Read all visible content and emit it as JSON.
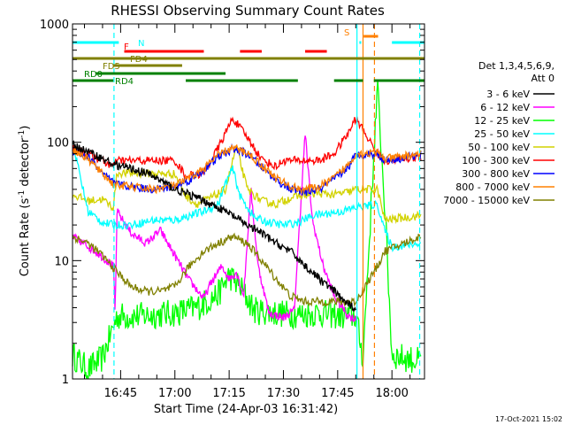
{
  "chart_data": {
    "type": "line",
    "title": "RHESSI Observing Summary Count Rates",
    "xlabel": "Start Time (24-Apr-03 16:31:42)",
    "ylabel": "Count Rate (s⁻¹ detector⁻¹)",
    "ylabel_main": "Count Rate (s",
    "ylabel_mid": " detector",
    "ylabel_end": ")",
    "ylabel_sup": "-1",
    "yscale": "log",
    "ylim": [
      1,
      1000
    ],
    "xlim": [
      "16:31:42",
      "18:09"
    ],
    "xtick_labels": [
      "16:45",
      "17:00",
      "17:15",
      "17:30",
      "17:45",
      "18:00"
    ],
    "ytick_labels": [
      "1",
      "10",
      "100",
      "1000"
    ],
    "legend": {
      "position": "right",
      "header_line1": "Det 1,3,4,5,6,9,",
      "header_line2": "Att 0",
      "entries": [
        {
          "label": "3 - 6 keV",
          "color": "#000000"
        },
        {
          "label": "6 - 12 keV",
          "color": "#ff00ff"
        },
        {
          "label": "12 - 25 keV",
          "color": "#00ff00"
        },
        {
          "label": "25 - 50 keV",
          "color": "#00ffff"
        },
        {
          "label": "50 - 100 keV",
          "color": "#d2d200"
        },
        {
          "label": "100 - 300 keV",
          "color": "#ff0000"
        },
        {
          "label": "300 - 800 keV",
          "color": "#0000ff"
        },
        {
          "label": "800 - 7000 keV",
          "color": "#ff8000"
        },
        {
          "label": "7000 - 15000 keV",
          "color": "#808000"
        }
      ]
    },
    "flag_bars": [
      {
        "label": "N",
        "color": "#00ffff",
        "intervals": [
          [
            "16:31:42",
            "16:44:30"
          ],
          [
            "17:51",
            "17:51:30"
          ],
          [
            "18:00",
            "18:09"
          ]
        ]
      },
      {
        "label": "S",
        "color": "#ff8000",
        "intervals": [
          [
            "17:52:10",
            "17:56:10"
          ]
        ]
      },
      {
        "label": "F",
        "color": "#ff0000",
        "intervals": [
          [
            "16:46",
            "17:08"
          ],
          [
            "17:18",
            "17:24"
          ],
          [
            "17:36",
            "17:42"
          ]
        ]
      },
      {
        "label": "FD4",
        "color": "#808000",
        "intervals": [
          [
            "16:31:42",
            "18:09"
          ]
        ]
      },
      {
        "label": "FD5",
        "color": "#808000",
        "intervals": [
          [
            "16:42:50",
            "17:02"
          ]
        ]
      },
      {
        "label": "RD0",
        "color": "#008000",
        "intervals": [
          [
            "16:38",
            "17:14"
          ]
        ]
      },
      {
        "label": "RD4",
        "color": "#008000",
        "intervals": [
          [
            "16:31:42",
            "16:43"
          ],
          [
            "17:03",
            "17:34"
          ],
          [
            "17:44",
            "17:52"
          ],
          [
            "17:55",
            "18:09"
          ]
        ]
      }
    ],
    "vlines": [
      {
        "time": "16:43:10",
        "color": "#00ffff",
        "style": "dashed"
      },
      {
        "time": "17:50:20",
        "color": "#00ffff",
        "style": "solid"
      },
      {
        "time": "17:52:00",
        "color": "#ff8000",
        "style": "solid"
      },
      {
        "time": "17:55:10",
        "color": "#ff8000",
        "style": "dashed"
      },
      {
        "time": "18:07:40",
        "color": "#00ffff",
        "style": "dashed"
      }
    ],
    "series": [
      {
        "name": "3 - 6 keV",
        "color": "#000000",
        "points": [
          [
            "16:31:42",
            95
          ],
          [
            "16:38",
            78
          ],
          [
            "16:43",
            65
          ],
          [
            "16:48",
            60
          ],
          [
            "16:52",
            55
          ],
          [
            "16:56",
            48
          ],
          [
            "17:00",
            40
          ],
          [
            "17:04",
            36
          ],
          [
            "17:08",
            32
          ],
          [
            "17:12",
            28
          ],
          [
            "17:16",
            24
          ],
          [
            "17:20",
            20
          ],
          [
            "17:24",
            17
          ],
          [
            "17:28",
            14
          ],
          [
            "17:32",
            12
          ],
          [
            "17:36",
            9
          ],
          [
            "17:40",
            7
          ],
          [
            "17:44",
            5.5
          ],
          [
            "17:48",
            4.2
          ],
          [
            "17:50",
            4.0
          ]
        ]
      },
      {
        "name": "6 - 12 keV",
        "color": "#ff00ff",
        "points": [
          [
            "16:31:42",
            16
          ],
          [
            "16:38",
            12
          ],
          [
            "16:43",
            9
          ],
          [
            "16:43:30",
            3.5
          ],
          [
            "16:44",
            26
          ],
          [
            "16:48",
            17
          ],
          [
            "16:52",
            14
          ],
          [
            "16:56",
            18
          ],
          [
            "17:00",
            11
          ],
          [
            "17:04",
            6.8
          ],
          [
            "17:08",
            4.8
          ],
          [
            "17:10",
            6.5
          ],
          [
            "17:13",
            9
          ],
          [
            "17:15",
            7
          ],
          [
            "17:17",
            8
          ],
          [
            "17:19",
            5
          ],
          [
            "17:21",
            40
          ],
          [
            "17:23",
            9
          ],
          [
            "17:26",
            3.6
          ],
          [
            "17:30",
            3.3
          ],
          [
            "17:33",
            3.8
          ],
          [
            "17:36",
            120
          ],
          [
            "17:38",
            22
          ],
          [
            "17:41",
            9
          ],
          [
            "17:44",
            5
          ],
          [
            "17:48",
            3.4
          ],
          [
            "17:50",
            3.2
          ]
        ]
      },
      {
        "name": "12 - 25 keV",
        "color": "#00ff00",
        "points": [
          [
            "16:31:42",
            1.6
          ],
          [
            "16:36",
            1.2
          ],
          [
            "16:40",
            1.5
          ],
          [
            "16:44",
            3.4
          ],
          [
            "16:50",
            3.4
          ],
          [
            "17:00",
            3.6
          ],
          [
            "17:06",
            4.0
          ],
          [
            "17:12",
            5.2
          ],
          [
            "17:15",
            7.5
          ],
          [
            "17:18",
            6.0
          ],
          [
            "17:22",
            3.8
          ],
          [
            "17:28",
            3.6
          ],
          [
            "17:34",
            3.5
          ],
          [
            "17:40",
            3.6
          ],
          [
            "17:46",
            3.4
          ],
          [
            "17:50",
            3.4
          ],
          [
            "17:52",
            1.5
          ],
          [
            "17:56",
            290
          ],
          [
            "17:58",
            30
          ],
          [
            "18:00",
            1.6
          ],
          [
            "18:08",
            1.4
          ]
        ]
      },
      {
        "name": "25 - 50 keV",
        "color": "#00ffff",
        "points": [
          [
            "16:31:42",
            100
          ],
          [
            "16:36",
            26
          ],
          [
            "16:40",
            21
          ],
          [
            "16:43",
            20
          ],
          [
            "16:48",
            20
          ],
          [
            "16:54",
            22
          ],
          [
            "17:00",
            22
          ],
          [
            "17:04",
            24
          ],
          [
            "17:08",
            26
          ],
          [
            "17:12",
            30
          ],
          [
            "17:14",
            45
          ],
          [
            "17:16",
            60
          ],
          [
            "17:18",
            35
          ],
          [
            "17:22",
            23
          ],
          [
            "17:26",
            21
          ],
          [
            "17:30",
            20
          ],
          [
            "17:34",
            21
          ],
          [
            "17:38",
            24
          ],
          [
            "17:42",
            25
          ],
          [
            "17:46",
            26
          ],
          [
            "17:50",
            28
          ],
          [
            "17:56",
            30
          ],
          [
            "17:58",
            18
          ],
          [
            "18:00",
            13
          ],
          [
            "18:08",
            14
          ]
        ]
      },
      {
        "name": "50 - 100 keV",
        "color": "#d2d200",
        "points": [
          [
            "16:31:42",
            36
          ],
          [
            "16:36",
            32
          ],
          [
            "16:40",
            33
          ],
          [
            "16:43",
            28
          ],
          [
            "16:44",
            55
          ],
          [
            "17:00",
            54
          ],
          [
            "17:03",
            35
          ],
          [
            "17:06",
            30
          ],
          [
            "17:10",
            34
          ],
          [
            "17:14",
            40
          ],
          [
            "17:17",
            92
          ],
          [
            "17:20",
            40
          ],
          [
            "17:24",
            32
          ],
          [
            "17:28",
            30
          ],
          [
            "17:32",
            34
          ],
          [
            "17:36",
            36
          ],
          [
            "17:40",
            37
          ],
          [
            "17:44",
            36
          ],
          [
            "17:48",
            38
          ],
          [
            "17:50",
            40
          ],
          [
            "17:56",
            40
          ],
          [
            "17:58",
            22
          ],
          [
            "18:08",
            24
          ]
        ]
      },
      {
        "name": "100 - 300 keV",
        "color": "#ff0000",
        "points": [
          [
            "16:31:42",
            90
          ],
          [
            "16:36",
            80
          ],
          [
            "16:40",
            70
          ],
          [
            "16:43",
            62
          ],
          [
            "16:44",
            70
          ],
          [
            "17:00",
            70
          ],
          [
            "17:03",
            52
          ],
          [
            "17:08",
            55
          ],
          [
            "17:12",
            90
          ],
          [
            "17:16",
            160
          ],
          [
            "17:20",
            110
          ],
          [
            "17:24",
            72
          ],
          [
            "17:28",
            62
          ],
          [
            "17:30",
            70
          ],
          [
            "17:40",
            70
          ],
          [
            "17:44",
            80
          ],
          [
            "17:48",
            120
          ],
          [
            "17:50",
            160
          ],
          [
            "17:56",
            80
          ],
          [
            "17:58",
            70
          ],
          [
            "18:08",
            75
          ]
        ]
      },
      {
        "name": "300 - 800 keV",
        "color": "#0000ff",
        "points": [
          [
            "16:31:42",
            85
          ],
          [
            "16:36",
            75
          ],
          [
            "16:40",
            55
          ],
          [
            "16:43",
            45
          ],
          [
            "16:48",
            42
          ],
          [
            "16:54",
            40
          ],
          [
            "17:00",
            42
          ],
          [
            "17:04",
            48
          ],
          [
            "17:08",
            58
          ],
          [
            "17:12",
            75
          ],
          [
            "17:16",
            88
          ],
          [
            "17:20",
            80
          ],
          [
            "17:24",
            62
          ],
          [
            "17:28",
            48
          ],
          [
            "17:32",
            40
          ],
          [
            "17:36",
            38
          ],
          [
            "17:40",
            40
          ],
          [
            "17:44",
            48
          ],
          [
            "17:48",
            62
          ],
          [
            "17:50",
            78
          ],
          [
            "17:56",
            80
          ],
          [
            "17:58",
            70
          ],
          [
            "18:08",
            78
          ]
        ]
      },
      {
        "name": "800 - 7000 keV",
        "color": "#ff8000",
        "points": [
          [
            "16:31:42",
            88
          ],
          [
            "16:36",
            72
          ],
          [
            "16:40",
            54
          ],
          [
            "16:43",
            44
          ],
          [
            "16:48",
            42
          ],
          [
            "16:54",
            40
          ],
          [
            "17:00",
            43
          ],
          [
            "17:04",
            50
          ],
          [
            "17:08",
            60
          ],
          [
            "17:12",
            78
          ],
          [
            "17:16",
            90
          ],
          [
            "17:20",
            82
          ],
          [
            "17:24",
            64
          ],
          [
            "17:28",
            50
          ],
          [
            "17:32",
            42
          ],
          [
            "17:36",
            40
          ],
          [
            "17:40",
            42
          ],
          [
            "17:44",
            50
          ],
          [
            "17:48",
            65
          ],
          [
            "17:50",
            80
          ],
          [
            "17:56",
            82
          ],
          [
            "17:58",
            72
          ],
          [
            "18:08",
            80
          ]
        ]
      },
      {
        "name": "7000 - 15000 keV",
        "color": "#808000",
        "points": [
          [
            "16:31:42",
            16
          ],
          [
            "16:36",
            14
          ],
          [
            "16:40",
            11
          ],
          [
            "16:44",
            8
          ],
          [
            "16:48",
            6
          ],
          [
            "16:52",
            5.5
          ],
          [
            "16:56",
            5.5
          ],
          [
            "17:00",
            6
          ],
          [
            "17:04",
            9
          ],
          [
            "17:08",
            12
          ],
          [
            "17:12",
            14
          ],
          [
            "17:16",
            16
          ],
          [
            "17:20",
            14
          ],
          [
            "17:24",
            10
          ],
          [
            "17:28",
            7
          ],
          [
            "17:32",
            5
          ],
          [
            "17:36",
            4.5
          ],
          [
            "17:40",
            4.5
          ],
          [
            "17:44",
            4.5
          ],
          [
            "17:48",
            4.5
          ],
          [
            "17:50",
            4.5
          ],
          [
            "17:56",
            9
          ],
          [
            "17:58",
            12
          ],
          [
            "18:08",
            16
          ]
        ]
      }
    ]
  },
  "footer": {
    "timestamp": "17-Oct-2021 15:02"
  }
}
